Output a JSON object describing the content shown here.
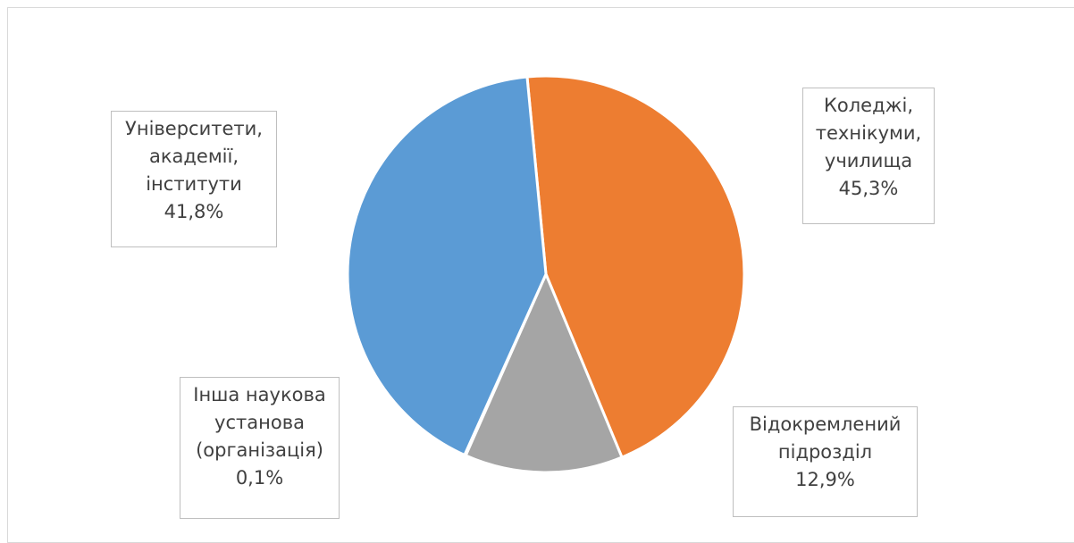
{
  "chart_data": {
    "type": "pie",
    "categories": [
      "Університети, академії, інститути",
      "Коледжі, технікуми, училища",
      "Відокремлений підрозділ",
      "Інша наукова установа (організація)"
    ],
    "values": [
      41.8,
      45.3,
      12.9,
      0.1
    ],
    "colors": [
      "#5b9bd5",
      "#ed7d31",
      "#a5a5a5",
      "#ffc000"
    ],
    "labels": {
      "universities": {
        "lines": [
          "Університети,",
          "академії,",
          "інститути"
        ],
        "value": "41,8%"
      },
      "colleges": {
        "lines": [
          "Коледжі,",
          "технікуми,",
          "училища"
        ],
        "value": "45,3%"
      },
      "separate": {
        "lines": [
          "Відокремлений",
          "підрозділ"
        ],
        "value": "12,9%"
      },
      "other": {
        "lines": [
          "Інша наукова",
          "установа",
          "(організація)"
        ],
        "value": "0,1%"
      }
    }
  }
}
